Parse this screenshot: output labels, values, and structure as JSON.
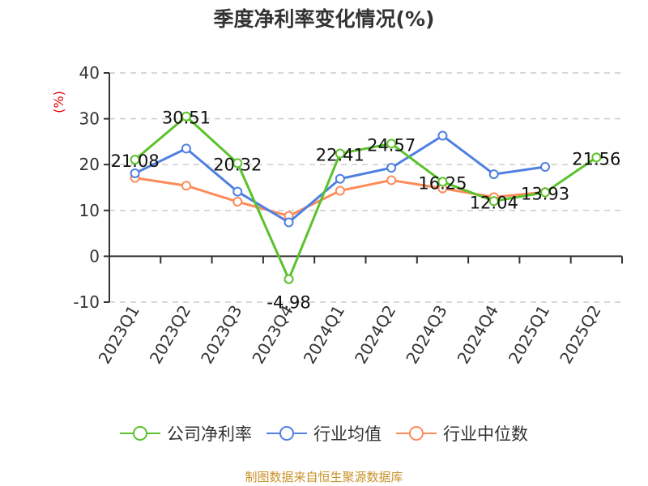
{
  "title": "季度净利率变化情况(%)",
  "source": "制图数据来自恒生聚源数据库",
  "legend": [
    {
      "label": "公司净利率",
      "color": "#5ac22a"
    },
    {
      "label": "行业均值",
      "color": "#4f80e1"
    },
    {
      "label": "行业中位数",
      "color": "#fd8b5a"
    }
  ],
  "chart_data": {
    "type": "line",
    "title": "季度净利率变化情况(%)",
    "xlabel": "",
    "ylabel": "(%)",
    "ylim": [
      -10,
      40
    ],
    "yticks": [
      -10,
      0,
      10,
      20,
      30,
      40
    ],
    "grid": true,
    "legend_position": "bottom",
    "categories": [
      "2023Q1",
      "2023Q2",
      "2023Q3",
      "2023Q4",
      "2024Q1",
      "2024Q2",
      "2024Q3",
      "2024Q4",
      "2025Q1",
      "2025Q2"
    ],
    "series": [
      {
        "name": "公司净利率",
        "color": "#5ac22a",
        "labeled": true,
        "values": [
          21.08,
          30.51,
          20.32,
          -4.98,
          22.41,
          24.57,
          16.25,
          12.04,
          13.93,
          21.56
        ]
      },
      {
        "name": "行业均值",
        "color": "#4f80e1",
        "labeled": false,
        "values": [
          18.1,
          23.5,
          14.1,
          7.4,
          16.9,
          19.3,
          26.3,
          17.9,
          19.5,
          null
        ]
      },
      {
        "name": "行业中位数",
        "color": "#fd8b5a",
        "labeled": false,
        "values": [
          17.1,
          15.4,
          11.9,
          8.8,
          14.3,
          16.6,
          14.8,
          12.9,
          14.0,
          null
        ]
      }
    ]
  }
}
